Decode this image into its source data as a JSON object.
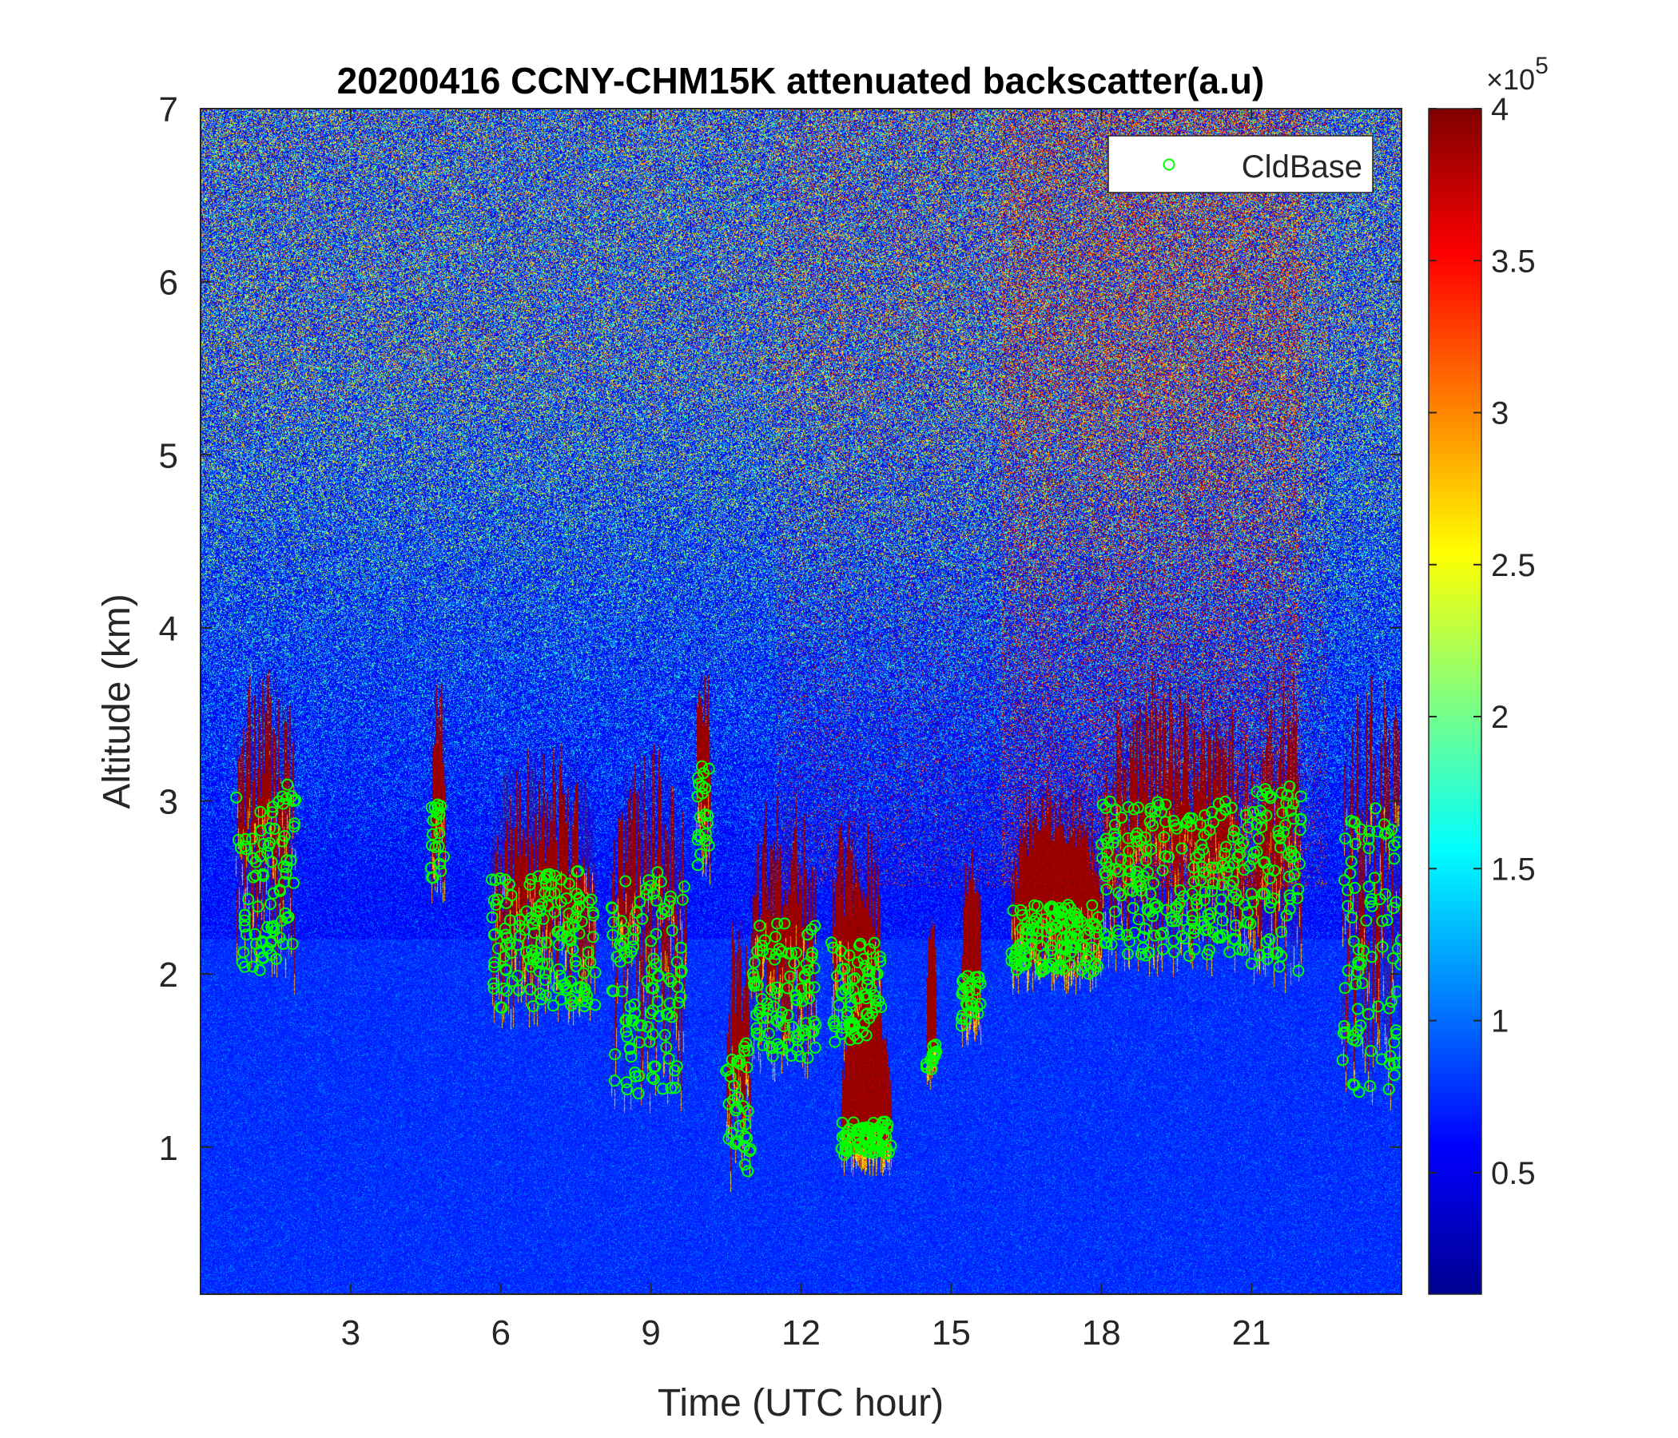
{
  "chart_data": {
    "type": "heatmap",
    "title": "20200416 CCNY-CHM15K attenuated backscatter(a.u)",
    "xlabel": "Time (UTC hour)",
    "ylabel": "Altitude (km)",
    "xlim": [
      0,
      24
    ],
    "ylim": [
      0.15,
      7
    ],
    "x_ticks": [
      3,
      6,
      9,
      12,
      15,
      18,
      21
    ],
    "y_ticks": [
      1,
      2,
      3,
      4,
      5,
      6,
      7
    ],
    "colormap": "jet",
    "colorbar": {
      "clim": [
        0.1,
        4
      ],
      "ticks": [
        0.5,
        1,
        1.5,
        2,
        2.5,
        3,
        3.5,
        4
      ],
      "exponent_label": "×10",
      "exponent": "5"
    },
    "legend": {
      "position": "top-right",
      "entries": [
        {
          "name": "CldBase",
          "marker": "circle",
          "color": "#00ff00"
        }
      ]
    },
    "marker_color": "#00ff00",
    "cloud_layers": [
      {
        "t_start": 0.7,
        "t_end": 1.9,
        "base_min": 2.0,
        "base_max": 3.1
      },
      {
        "t_start": 4.6,
        "t_end": 4.9,
        "base_min": 2.5,
        "base_max": 3.0
      },
      {
        "t_start": 5.8,
        "t_end": 7.9,
        "base_min": 1.8,
        "base_max": 2.6
      },
      {
        "t_start": 8.2,
        "t_end": 9.7,
        "base_min": 1.3,
        "base_max": 2.6
      },
      {
        "t_start": 9.9,
        "t_end": 10.2,
        "base_min": 2.6,
        "base_max": 3.2
      },
      {
        "t_start": 10.5,
        "t_end": 11.0,
        "base_min": 0.85,
        "base_max": 1.6
      },
      {
        "t_start": 11.0,
        "t_end": 12.3,
        "base_min": 1.5,
        "base_max": 2.3
      },
      {
        "t_start": 12.6,
        "t_end": 13.6,
        "base_min": 1.6,
        "base_max": 2.2
      },
      {
        "t_start": 12.8,
        "t_end": 13.8,
        "base_min": 0.95,
        "base_max": 1.15
      },
      {
        "t_start": 14.5,
        "t_end": 14.7,
        "base_min": 1.45,
        "base_max": 1.6
      },
      {
        "t_start": 15.2,
        "t_end": 15.6,
        "base_min": 1.7,
        "base_max": 2.0
      },
      {
        "t_start": 16.2,
        "t_end": 18.0,
        "base_min": 2.0,
        "base_max": 2.4
      },
      {
        "t_start": 18.0,
        "t_end": 21.0,
        "base_min": 2.1,
        "base_max": 3.0
      },
      {
        "t_start": 21.0,
        "t_end": 22.0,
        "base_min": 2.0,
        "base_max": 3.1
      },
      {
        "t_start": 22.8,
        "t_end": 24.0,
        "base_min": 1.3,
        "base_max": 3.0
      }
    ]
  }
}
